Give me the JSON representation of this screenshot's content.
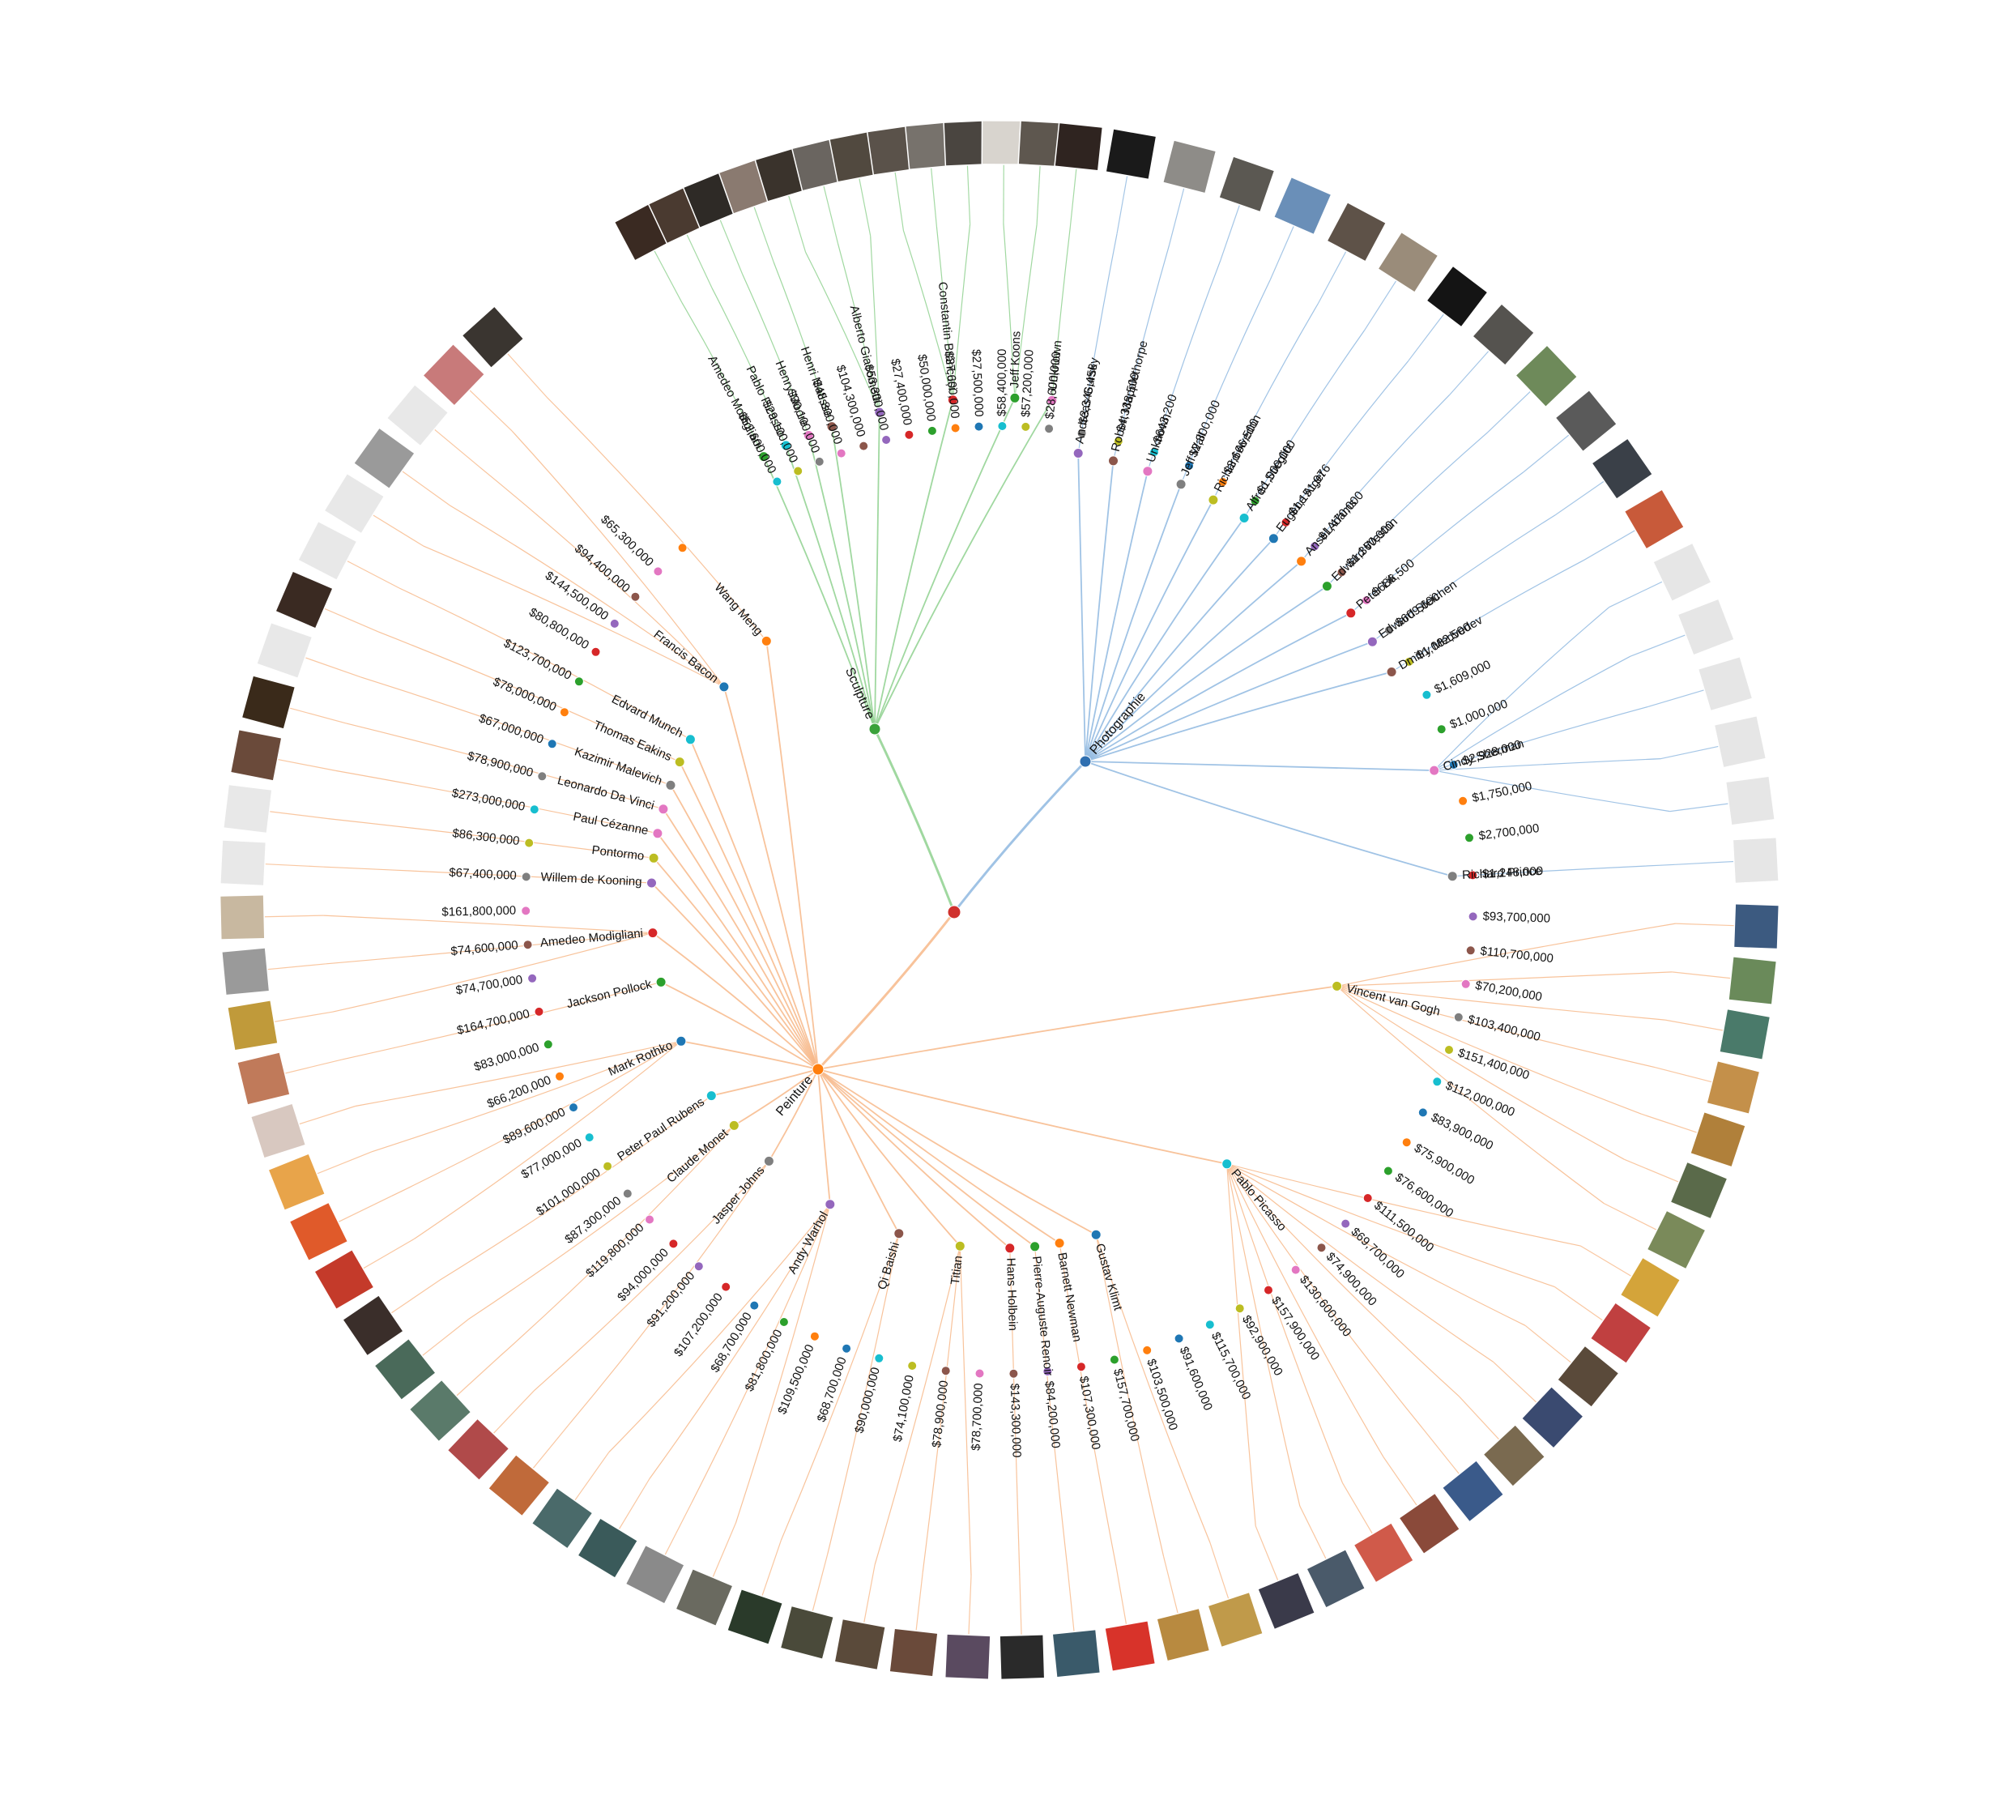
{
  "root": {
    "color": "#d0312d"
  },
  "categories": [
    {
      "name": "Sculpture",
      "color": "#74c476",
      "link": "#8fd18f",
      "dot": "#3aa23a",
      "artists": [
        {
          "name": "Amedeo Modigliani",
          "dot": "#2ca02c",
          "works": [
            {
              "price": "$52,600,000",
              "dot": "#17becf",
              "thumb": "#3a2a22"
            }
          ]
        },
        {
          "name": "Pablo Picasso",
          "dot": "#17becf",
          "works": [
            {
              "price": "$29,100,000",
              "dot": "#bcbd22",
              "thumb": "#4a3a30"
            }
          ]
        },
        {
          "name": "Henry Moore",
          "dot": "#e377c2",
          "works": [
            {
              "price": "$30,100,000",
              "dot": "#7f7f7f",
              "thumb": "#2e2a26"
            }
          ]
        },
        {
          "name": "Henri Matisse",
          "dot": "#8c564b",
          "works": [
            {
              "price": "$48,800,000",
              "dot": "#e377c2",
              "thumb": "#8a7a70"
            }
          ]
        },
        {
          "name": "Alberto Giacometti",
          "dot": "#9467bd",
          "works": [
            {
              "price": "$104,300,000",
              "dot": "#8c564b",
              "thumb": "#3a332c"
            },
            {
              "price": "$53,300,000",
              "dot": "#9467bd",
              "thumb": "#6a6560"
            },
            {
              "price": "$27,400,000",
              "dot": "#d62728",
              "thumb": "#51493f"
            }
          ]
        },
        {
          "name": "Constantin Brâncuși",
          "dot": "#d62728",
          "works": [
            {
              "price": "$50,000,000",
              "dot": "#2ca02c",
              "thumb": "#5a524a"
            },
            {
              "price": "$37,600,000",
              "dot": "#ff7f0e",
              "thumb": "#77726c"
            },
            {
              "price": "$27,500,000",
              "dot": "#1f77b4",
              "thumb": "#4a4540"
            }
          ]
        },
        {
          "name": "Jeff Koons",
          "dot": "#2ca02c",
          "works": [
            {
              "price": "$58,400,000",
              "dot": "#17becf",
              "thumb": "#d8d4ce"
            },
            {
              "price": "$57,200,000",
              "dot": "#bcbd22",
              "thumb": "#5e574f"
            }
          ]
        },
        {
          "name": "Unknown",
          "dot": "#e377c2",
          "works": [
            {
              "price": "$28,600,000",
              "dot": "#7f7f7f",
              "thumb": "#2f2420"
            }
          ]
        }
      ]
    },
    {
      "name": "Photographie",
      "color": "#6baed6",
      "link": "#8fb8e0",
      "dot": "#2f6fb0",
      "artists": [
        {
          "name": "Andreas Gursky",
          "dot": "#9467bd",
          "works": [
            {
              "price": "$3,346,456",
              "dot": "#7f7f7f",
              "thumb": "#1a1a1a"
            }
          ]
        },
        {
          "name": "Robert Mapplethorpe",
          "dot": "#8c564b",
          "works": [
            {
              "price": "$4,338,500",
              "dot": "#bcbd22",
              "thumb": "#8e8c88"
            }
          ]
        },
        {
          "name": "Unknown",
          "dot": "#e377c2",
          "works": [
            {
              "price": "$643,200",
              "dot": "#17becf",
              "thumb": "#5b5852"
            }
          ]
        },
        {
          "name": "Jeff Wall",
          "dot": "#7f7f7f",
          "works": [
            {
              "price": "$2,300,000",
              "dot": "#1f77b4",
              "thumb": "#6a8fb8"
            }
          ]
        },
        {
          "name": "Richard Avedon",
          "dot": "#bcbd22",
          "works": [
            {
              "price": "$3,666,500",
              "dot": "#ff7f0e",
              "thumb": "#5e5248"
            }
          ]
        },
        {
          "name": "Alfred Stieglitz",
          "dot": "#17becf",
          "works": [
            {
              "price": "$1,000,000",
              "dot": "#2ca02c",
              "thumb": "#9a8c7a"
            }
          ]
        },
        {
          "name": "Eugène Atget",
          "dot": "#1f77b4",
          "works": [
            {
              "price": "$1,151,976",
              "dot": "#d62728",
              "thumb": "#141414"
            }
          ]
        },
        {
          "name": "Ansel Adams",
          "dot": "#ff7f0e",
          "works": [
            {
              "price": "$1,470,000",
              "dot": "#9467bd",
              "thumb": "#55534f"
            }
          ]
        },
        {
          "name": "Edward Weston",
          "dot": "#2ca02c",
          "works": [
            {
              "price": "$1,360,000",
              "dot": "#8c564b",
              "thumb": "#6e8a5a"
            }
          ]
        },
        {
          "name": "Peter Lik",
          "dot": "#d62728",
          "works": [
            {
              "price": "$686,500",
              "dot": "#e377c2",
              "thumb": "#5a5a5a"
            }
          ]
        },
        {
          "name": "Edward Steichen",
          "dot": "#9467bd",
          "works": [
            {
              "price": "$609,600",
              "dot": "#7f7f7f",
              "thumb": "#3a4048"
            }
          ]
        },
        {
          "name": "Dmitry Medvedev",
          "dot": "#8c564b",
          "works": [
            {
              "price": "$1,082,500",
              "dot": "#bcbd22",
              "thumb": "#c85a3a"
            }
          ]
        },
        {
          "name": "Cindy Sherman",
          "dot": "#e377c2",
          "works": [
            {
              "price": "$1,609,000",
              "dot": "#17becf",
              "thumb": "#e6e6e6"
            },
            {
              "price": "$1,000,000",
              "dot": "#2ca02c",
              "thumb": "#e6e6e6"
            },
            {
              "price": "$2,928,000",
              "dot": "#1f77b4",
              "thumb": "#e6e6e6"
            },
            {
              "price": "$1,750,000",
              "dot": "#ff7f0e",
              "thumb": "#e6e6e6"
            },
            {
              "price": "$2,700,000",
              "dot": "#2ca02c",
              "thumb": "#e6e6e6"
            }
          ]
        },
        {
          "name": "Richard Prince",
          "dot": "#7f7f7f",
          "works": [
            {
              "price": "$1,248,000",
              "dot": "#d62728",
              "thumb": "#e6e6e6"
            }
          ]
        }
      ]
    },
    {
      "name": "Peinture",
      "color": "#fdae6b",
      "link": "#f7b98a",
      "dot": "#ff7f0e",
      "artists": [
        {
          "name": "Vincent van Gogh",
          "dot": "#bcbd22",
          "works": [
            {
              "price": "$93,700,000",
              "dot": "#9467bd",
              "thumb": "#3c5a80"
            },
            {
              "price": "$110,700,000",
              "dot": "#8c564b",
              "thumb": "#6a8a5a"
            },
            {
              "price": "$70,200,000",
              "dot": "#e377c2",
              "thumb": "#4a7a6a"
            },
            {
              "price": "$103,400,000",
              "dot": "#7f7f7f",
              "thumb": "#c4904a"
            },
            {
              "price": "$151,400,000",
              "dot": "#bcbd22",
              "thumb": "#b0803a"
            },
            {
              "price": "$112,000,000",
              "dot": "#17becf",
              "thumb": "#5a6a4a"
            },
            {
              "price": "$83,900,000",
              "dot": "#1f77b4",
              "thumb": "#7a8a5a"
            }
          ]
        },
        {
          "name": "Pablo Picasso",
          "dot": "#17becf",
          "works": [
            {
              "price": "$75,900,000",
              "dot": "#ff7f0e",
              "thumb": "#d4a43a"
            },
            {
              "price": "$76,600,000",
              "dot": "#2ca02c",
              "thumb": "#c04040"
            },
            {
              "price": "$111,500,000",
              "dot": "#d62728",
              "thumb": "#5a4a3a"
            },
            {
              "price": "$69,700,000",
              "dot": "#9467bd",
              "thumb": "#3a4a70"
            },
            {
              "price": "$74,900,000",
              "dot": "#8c564b",
              "thumb": "#7a6a50"
            },
            {
              "price": "$130,600,000",
              "dot": "#e377c2",
              "thumb": "#3a5a8a"
            },
            {
              "price": "$157,900,000",
              "dot": "#d62728",
              "thumb": "#8a4a3a"
            },
            {
              "price": "$92,900,000",
              "dot": "#bcbd22",
              "thumb": "#d05a4a"
            },
            {
              "price": "$115,700,000",
              "dot": "#17becf",
              "thumb": "#4a5a6a"
            },
            {
              "price": "$91,600,000",
              "dot": "#1f77b4",
              "thumb": "#3a3a4a"
            }
          ]
        },
        {
          "name": "Gustav Klimt",
          "dot": "#1f77b4",
          "works": [
            {
              "price": "$103,500,000",
              "dot": "#ff7f0e",
              "thumb": "#c09a4a"
            },
            {
              "price": "$157,700,000",
              "dot": "#2ca02c",
              "thumb": "#b88a40"
            }
          ]
        },
        {
          "name": "Barnett Newman",
          "dot": "#ff7f0e",
          "works": [
            {
              "price": "$107,300,000",
              "dot": "#d62728",
              "thumb": "#d8332a"
            }
          ]
        },
        {
          "name": "Pierre-Auguste Renoir",
          "dot": "#2ca02c",
          "works": [
            {
              "price": "$84,200,000",
              "dot": "#9467bd",
              "thumb": "#3a5a6a"
            }
          ]
        },
        {
          "name": "Hans Holbein",
          "dot": "#d62728",
          "works": [
            {
              "price": "$143,300,000",
              "dot": "#8c564b",
              "thumb": "#2a2a2a"
            }
          ]
        },
        {
          "name": "Titian",
          "dot": "#bcbd22",
          "works": [
            {
              "price": "$78,700,000",
              "dot": "#e377c2",
              "thumb": "#5a4a60"
            },
            {
              "price": "$78,900,000",
              "dot": "#8c564b",
              "thumb": "#6a4a3a"
            },
            {
              "price": "$74,100,000",
              "dot": "#bcbd22",
              "thumb": "#5a4a3a"
            }
          ]
        },
        {
          "name": "Qi Baishi",
          "dot": "#8c564b",
          "works": [
            {
              "price": "$90,000,000",
              "dot": "#17becf",
              "thumb": "#4a4a3a"
            },
            {
              "price": "$68,700,000",
              "dot": "#1f77b4",
              "thumb": "#2a3a2a"
            }
          ]
        },
        {
          "name": "Andy Warhol",
          "dot": "#9467bd",
          "works": [
            {
              "price": "$109,500,000",
              "dot": "#ff7f0e",
              "thumb": "#6a6a60"
            },
            {
              "price": "$81,800,000",
              "dot": "#2ca02c",
              "thumb": "#8a8a8a"
            },
            {
              "price": "$68,700,000",
              "dot": "#1f77b4",
              "thumb": "#3a5a5a"
            },
            {
              "price": "$107,200,000",
              "dot": "#d62728",
              "thumb": "#4a6a6a"
            }
          ]
        },
        {
          "name": "Jasper Johns",
          "dot": "#7f7f7f",
          "works": [
            {
              "price": "$91,200,000",
              "dot": "#9467bd",
              "thumb": "#c06a3a"
            },
            {
              "price": "$94,000,000",
              "dot": "#d62728",
              "thumb": "#b04a4a"
            }
          ]
        },
        {
          "name": "Claude Monet",
          "dot": "#bcbd22",
          "works": [
            {
              "price": "$119,800,000",
              "dot": "#e377c2",
              "thumb": "#5a7a6a"
            },
            {
              "price": "$87,300,000",
              "dot": "#7f7f7f",
              "thumb": "#4a6a5a"
            }
          ]
        },
        {
          "name": "Peter Paul Rubens",
          "dot": "#17becf",
          "works": [
            {
              "price": "$101,000,000",
              "dot": "#bcbd22",
              "thumb": "#3a2e2a"
            }
          ]
        },
        {
          "name": "Mark Rothko",
          "dot": "#1f77b4",
          "works": [
            {
              "price": "$77,000,000",
              "dot": "#17becf",
              "thumb": "#c43a2a"
            },
            {
              "price": "$89,600,000",
              "dot": "#1f77b4",
              "thumb": "#e05a2a"
            },
            {
              "price": "$66,200,000",
              "dot": "#ff7f0e",
              "thumb": "#e8a44a"
            },
            {
              "price": "$83,000,000",
              "dot": "#2ca02c",
              "thumb": "#d8c8c0"
            }
          ]
        },
        {
          "name": "Jackson Pollock",
          "dot": "#2ca02c",
          "works": [
            {
              "price": "$164,700,000",
              "dot": "#d62728",
              "thumb": "#c07a5a"
            }
          ]
        },
        {
          "name": "Amedeo Modigliani",
          "dot": "#d62728",
          "works": [
            {
              "price": "$74,700,000",
              "dot": "#9467bd",
              "thumb": "#c09a3a"
            },
            {
              "price": "$74,600,000",
              "dot": "#8c564b",
              "thumb": "#9a9a9a"
            },
            {
              "price": "$161,800,000",
              "dot": "#e377c2",
              "thumb": "#c8b8a0"
            }
          ]
        },
        {
          "name": "Willem de Kooning",
          "dot": "#9467bd",
          "works": [
            {
              "price": "$67,400,000",
              "dot": "#7f7f7f",
              "thumb": "#e8e8e8"
            }
          ]
        },
        {
          "name": "Pontormo",
          "dot": "#bcbd22",
          "works": [
            {
              "price": "$86,300,000",
              "dot": "#bcbd22",
              "thumb": "#e8e8e8"
            }
          ]
        },
        {
          "name": "Paul Cézanne",
          "dot": "#e377c2",
          "works": [
            {
              "price": "$273,000,000",
              "dot": "#17becf",
              "thumb": "#6a4a3a"
            }
          ]
        },
        {
          "name": "Leonardo Da Vinci",
          "dot": "#e377c2",
          "works": [
            {
              "price": "$78,900,000",
              "dot": "#7f7f7f",
              "thumb": "#3a2a1a"
            }
          ]
        },
        {
          "name": "Kazimir Malevich",
          "dot": "#7f7f7f",
          "works": [
            {
              "price": "$67,000,000",
              "dot": "#1f77b4",
              "thumb": "#e8e8e8"
            }
          ]
        },
        {
          "name": "Thomas Eakins",
          "dot": "#bcbd22",
          "works": [
            {
              "price": "$78,000,000",
              "dot": "#ff7f0e",
              "thumb": "#3a2a22"
            }
          ]
        },
        {
          "name": "Edvard Munch",
          "dot": "#17becf",
          "works": [
            {
              "price": "$123,700,000",
              "dot": "#2ca02c",
              "thumb": "#e8e8e8"
            }
          ]
        },
        {
          "name": "Francis Bacon",
          "dot": "#1f77b4",
          "works": [
            {
              "price": "$80,800,000",
              "dot": "#d62728",
              "thumb": "#e8e8e8"
            },
            {
              "price": "$144,500,000",
              "dot": "#9467bd",
              "thumb": "#9a9a9a"
            },
            {
              "price": "$94,400,000",
              "dot": "#8c564b",
              "thumb": "#e8e8e8"
            },
            {
              "price": "$65,300,000",
              "dot": "#e377c2",
              "thumb": "#c87a7a"
            }
          ]
        },
        {
          "name": "Wang Meng",
          "dot": "#ff7f0e",
          "works": [
            {
              "price": "",
              "dot": "#ff7f0e",
              "thumb": "#3a3530"
            }
          ]
        }
      ]
    }
  ]
}
